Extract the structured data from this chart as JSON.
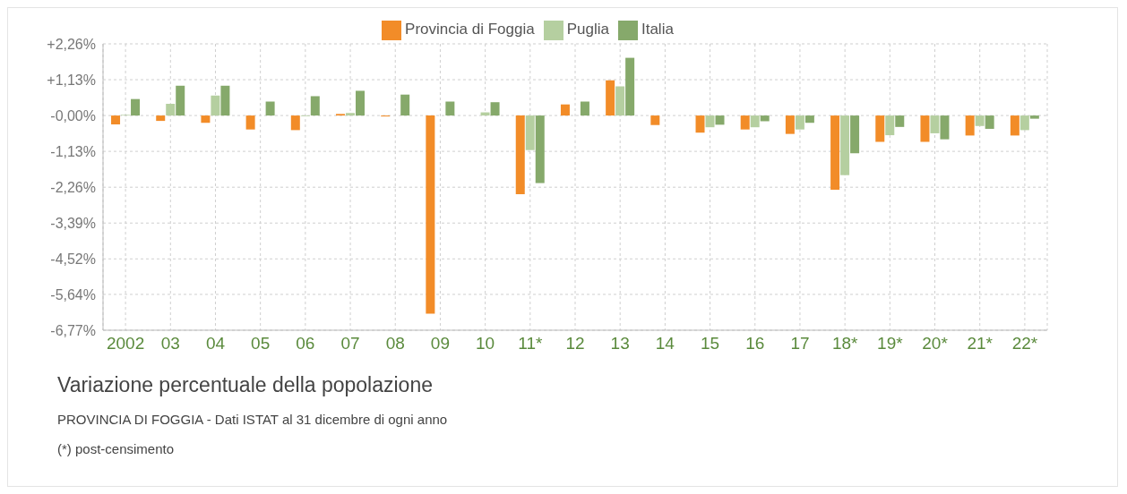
{
  "chart_data": {
    "type": "bar",
    "title": "Variazione percentuale della popolazione",
    "subtitle": "PROVINCIA DI FOGGIA - Dati ISTAT al 31 dicembre di ogni anno",
    "annotations": [
      "(*) post-censimento"
    ],
    "categories": [
      "2002",
      "03",
      "04",
      "05",
      "06",
      "07",
      "08",
      "09",
      "10",
      "11*",
      "12",
      "13",
      "14",
      "15",
      "16",
      "17",
      "18*",
      "19*",
      "20*",
      "21*",
      "22*"
    ],
    "series": [
      {
        "name": "Provincia di Foggia",
        "color": "#f28c28",
        "values": [
          -0.28,
          -0.17,
          -0.23,
          -0.44,
          -0.46,
          0.05,
          -0.03,
          -6.25,
          0,
          -2.48,
          0.35,
          1.11,
          -0.3,
          -0.54,
          -0.44,
          -0.58,
          -2.34,
          -0.83,
          -0.83,
          -0.63,
          -0.63
        ]
      },
      {
        "name": "Puglia",
        "color": "#b5cfa0",
        "values": [
          0.02,
          0.37,
          0.63,
          0,
          -0.02,
          0.08,
          0,
          0,
          0.1,
          -1.09,
          0,
          0.92,
          0,
          -0.37,
          -0.37,
          -0.44,
          -1.88,
          -0.62,
          -0.56,
          -0.33,
          -0.46
        ]
      },
      {
        "name": "Italia",
        "color": "#86a96b",
        "values": [
          0.52,
          0.94,
          0.94,
          0.44,
          0.61,
          0.78,
          0.66,
          0.44,
          0.42,
          -2.13,
          0.44,
          1.82,
          0,
          -0.29,
          -0.18,
          -0.23,
          -1.19,
          -0.36,
          -0.75,
          -0.42,
          -0.1
        ]
      }
    ],
    "ylim": [
      -6.77,
      2.26
    ],
    "yticks": [
      {
        "value": 2.26,
        "label": "+2,26%"
      },
      {
        "value": 1.13,
        "label": "+1,13%"
      },
      {
        "value": 0,
        "label": "-0,00%"
      },
      {
        "value": -1.13,
        "label": "-1,13%"
      },
      {
        "value": -2.26,
        "label": "-2,26%"
      },
      {
        "value": -3.39,
        "label": "-3,39%"
      },
      {
        "value": -4.52,
        "label": "-4,52%"
      },
      {
        "value": -5.64,
        "label": "-5,64%"
      },
      {
        "value": -6.77,
        "label": "-6,77%"
      }
    ],
    "grid": true,
    "legend": "top"
  }
}
